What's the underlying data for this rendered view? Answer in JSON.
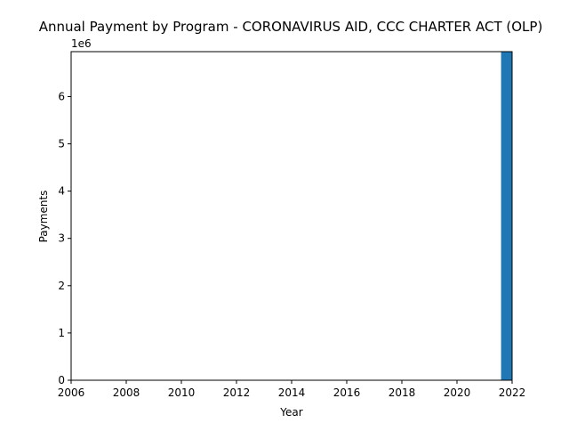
{
  "chart_data": {
    "type": "bar",
    "title": "Annual Payment by Program - CORONAVIRUS AID, CCC CHARTER ACT (OLP)",
    "xlabel": "Year",
    "ylabel": "Payments",
    "y_offset_label": "1e6",
    "xlim": [
      2006,
      2022
    ],
    "ylim": [
      0,
      6950000
    ],
    "x_ticks": [
      "2006",
      "2008",
      "2010",
      "2012",
      "2014",
      "2016",
      "2018",
      "2020",
      "2022"
    ],
    "y_ticks": [
      "0",
      "1",
      "2",
      "3",
      "4",
      "5",
      "6"
    ],
    "bars": [
      {
        "x": 2022,
        "value": 6950000
      }
    ],
    "grid": false,
    "bar_color": "#1f77b4"
  }
}
